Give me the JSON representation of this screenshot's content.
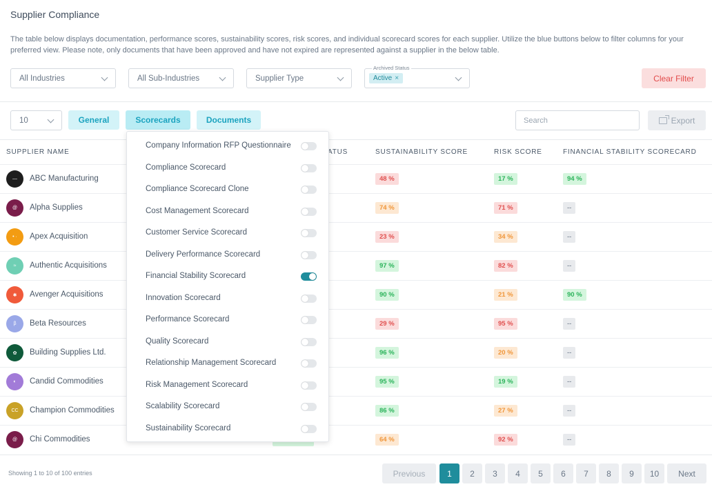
{
  "page": {
    "title": "Supplier Compliance",
    "description": "The table below displays documentation, performance scores, sustainability scores, risk scores, and individual scorecard scores for each supplier. Utilize the blue buttons below to filter columns for your preferred view. Please note, only documents that have been approved and have not expired are represented against a supplier in the below table."
  },
  "filters": {
    "industries": "All Industries",
    "sub_industries": "All Sub-Industries",
    "supplier_type": "Supplier Type",
    "archived_label": "Archived Status",
    "archived_chip": "Active",
    "chip_remove": "×",
    "clear": "Clear Filter"
  },
  "toolbar": {
    "page_size": "10",
    "tabs": [
      "General",
      "Scorecards",
      "Documents"
    ],
    "search_placeholder": "Search",
    "export": "Export"
  },
  "table": {
    "headers": {
      "supplier": "SUPPLIER NAME",
      "status_peek": "ATUS",
      "sustainability": "SUSTAINABILITY SCORE",
      "risk": "RISK SCORE",
      "financial": "FINANCIAL STABILITY SCORECARD"
    },
    "rows": [
      {
        "name": "ABC Manufacturing",
        "avatar_color": "#1e1e1e",
        "avatar_text": "—",
        "sustainability": "48 %",
        "s_color": "red",
        "risk": "17 %",
        "r_color": "green",
        "financial": "94 %",
        "f_color": "green"
      },
      {
        "name": "Alpha Supplies",
        "avatar_color": "#7a1d4a",
        "avatar_text": "@",
        "sustainability": "74 %",
        "s_color": "orange",
        "risk": "71 %",
        "r_color": "red",
        "financial": "--",
        "f_color": "grey"
      },
      {
        "name": "Apex Acquisition",
        "avatar_color": "#f39c12",
        "avatar_text": "• ·",
        "sustainability": "23 %",
        "s_color": "red",
        "risk": "34 %",
        "r_color": "orange",
        "financial": "--",
        "f_color": "grey"
      },
      {
        "name": "Authentic Acquisitions",
        "avatar_color": "#6fcfb4",
        "avatar_text": "≈",
        "sustainability": "97 %",
        "s_color": "green",
        "risk": "82 %",
        "r_color": "red",
        "financial": "--",
        "f_color": "grey"
      },
      {
        "name": "Avenger Acquisitions",
        "avatar_color": "#f05a3a",
        "avatar_text": "✱",
        "sustainability": "90 %",
        "s_color": "green",
        "risk": "21 %",
        "r_color": "orange",
        "financial": "90 %",
        "f_color": "green"
      },
      {
        "name": "Beta Resources",
        "avatar_color": "#9aa8e8",
        "avatar_text": "β",
        "sustainability": "29 %",
        "s_color": "red",
        "risk": "95 %",
        "r_color": "red",
        "financial": "--",
        "f_color": "grey"
      },
      {
        "name": "Building Supplies Ltd.",
        "avatar_color": "#0f5a3a",
        "avatar_text": "✿",
        "sustainability": "96 %",
        "s_color": "green",
        "risk": "20 %",
        "r_color": "orange",
        "financial": "--",
        "f_color": "grey"
      },
      {
        "name": "Candid Commodities",
        "avatar_color": "#a27bd8",
        "avatar_text": "◐",
        "sustainability": "95 %",
        "s_color": "green",
        "risk": "19 %",
        "r_color": "green",
        "financial": "--",
        "f_color": "grey"
      },
      {
        "name": "Champion Commodities",
        "avatar_color": "#c9a227",
        "avatar_text": "CC",
        "sustainability": "86 %",
        "s_color": "green",
        "risk": "27 %",
        "r_color": "orange",
        "financial": "--",
        "f_color": "grey"
      },
      {
        "name": "Chi Commodities",
        "avatar_color": "#7a1d4a",
        "avatar_text": "@",
        "sustainability": "64 %",
        "s_color": "orange",
        "risk": "92 %",
        "r_color": "red",
        "financial": "--",
        "f_color": "grey"
      }
    ]
  },
  "scorecard_menu": [
    {
      "label": "Company Information RFP Questionnaire",
      "on": false
    },
    {
      "label": "Compliance Scorecard",
      "on": false
    },
    {
      "label": "Compliance Scorecard Clone",
      "on": false
    },
    {
      "label": "Cost Management Scorecard",
      "on": false
    },
    {
      "label": "Customer Service Scorecard",
      "on": false
    },
    {
      "label": "Delivery Performance Scorecard",
      "on": false
    },
    {
      "label": "Financial Stability Scorecard",
      "on": true
    },
    {
      "label": "Innovation Scorecard",
      "on": false
    },
    {
      "label": "Performance Scorecard",
      "on": false
    },
    {
      "label": "Quality Scorecard",
      "on": false
    },
    {
      "label": "Relationship Management Scorecard",
      "on": false
    },
    {
      "label": "Risk Management Scorecard",
      "on": false
    },
    {
      "label": "Scalability Scorecard",
      "on": false
    },
    {
      "label": "Sustainability Scorecard",
      "on": false
    }
  ],
  "footer": {
    "info": "Showing 1 to 10 of 100 entries",
    "previous": "Previous",
    "next": "Next",
    "pages": [
      "1",
      "2",
      "3",
      "4",
      "5",
      "6",
      "7",
      "8",
      "9",
      "10"
    ],
    "current_page": "1"
  }
}
